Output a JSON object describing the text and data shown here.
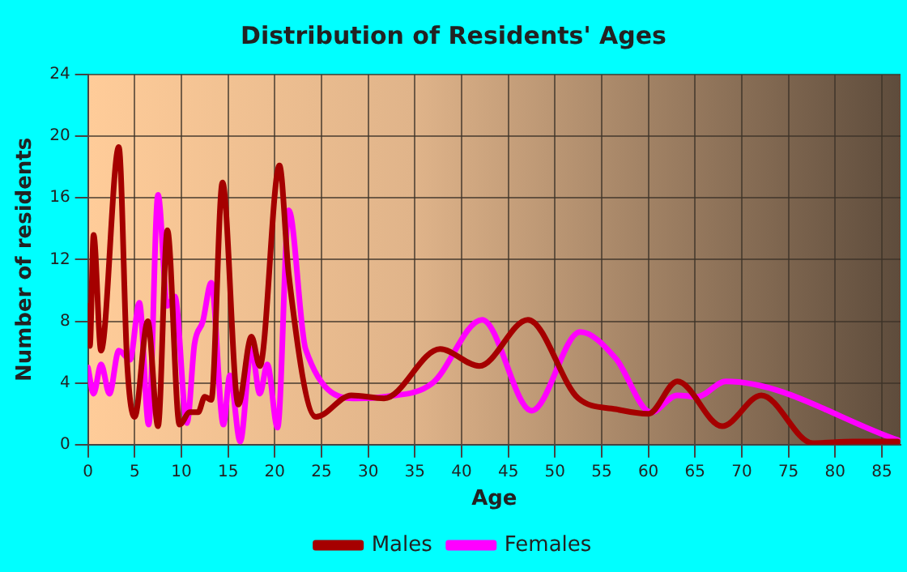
{
  "chart_data": {
    "type": "line",
    "title": "Distribution of Residents' Ages",
    "xlabel": "Age",
    "ylabel": "Number of residents",
    "xlim": [
      0,
      87
    ],
    "xticks": [
      0,
      5,
      10,
      15,
      20,
      25,
      30,
      35,
      40,
      45,
      50,
      55,
      60,
      65,
      70,
      75,
      80,
      85
    ],
    "ylim": [
      0,
      24
    ],
    "yticks": [
      0,
      4,
      8,
      12,
      16,
      20,
      24
    ],
    "grid": true,
    "legend": "bottom",
    "marker": "none",
    "line_style": "solid",
    "series": [
      {
        "name": "Males",
        "color": "#a50000",
        "x": [
          0,
          0.2,
          0.6,
          1.4,
          3.3,
          4.2,
          5,
          6.4,
          7.5,
          8.5,
          9.8,
          10.9,
          11.8,
          12.5,
          13.2,
          14.4,
          16.1,
          17.5,
          18.4,
          20.5,
          21.5,
          24.4,
          28.2,
          31.7,
          37.7,
          41.9,
          47.1,
          52.5,
          56.5,
          60,
          63.1,
          67.9,
          72.1,
          77.6,
          81.9,
          86.7
        ],
        "values": [
          9,
          6.4,
          13.6,
          6.1,
          19.3,
          5.2,
          1.8,
          8,
          1.2,
          13.9,
          1.3,
          2.1,
          2.1,
          3.1,
          2.9,
          17,
          2.6,
          7,
          5.1,
          18.1,
          11,
          1.8,
          3.2,
          3,
          6.2,
          5.1,
          8.1,
          3,
          2.3,
          2,
          4.1,
          1.2,
          3.2,
          0.1,
          0.2,
          0.2
        ]
      },
      {
        "name": "Females",
        "color": "#ff00ff",
        "x": [
          0,
          0.6,
          1.4,
          2.3,
          3.3,
          4.5,
          5.5,
          6.5,
          7.5,
          8.5,
          9.3,
          10.6,
          11.4,
          12.3,
          13.2,
          14.5,
          15.2,
          16.3,
          17.5,
          18.4,
          19.2,
          20.3,
          21.5,
          23.3,
          28.8,
          31.7,
          36.9,
          42.2,
          47.5,
          52.7,
          56.5,
          60.3,
          63.1,
          65.2,
          68.3,
          86.7
        ],
        "values": [
          5,
          3.3,
          5.2,
          3.3,
          6.1,
          5.5,
          9.2,
          1.3,
          16.2,
          9,
          9.6,
          1.4,
          6.5,
          8,
          10.5,
          1.3,
          4.5,
          0.2,
          6.2,
          3.3,
          5.2,
          1.1,
          15.2,
          6.2,
          3,
          3.1,
          4,
          8.1,
          2.2,
          7.3,
          5.6,
          2.1,
          3.2,
          3.1,
          4.1,
          0.3
        ]
      }
    ]
  }
}
